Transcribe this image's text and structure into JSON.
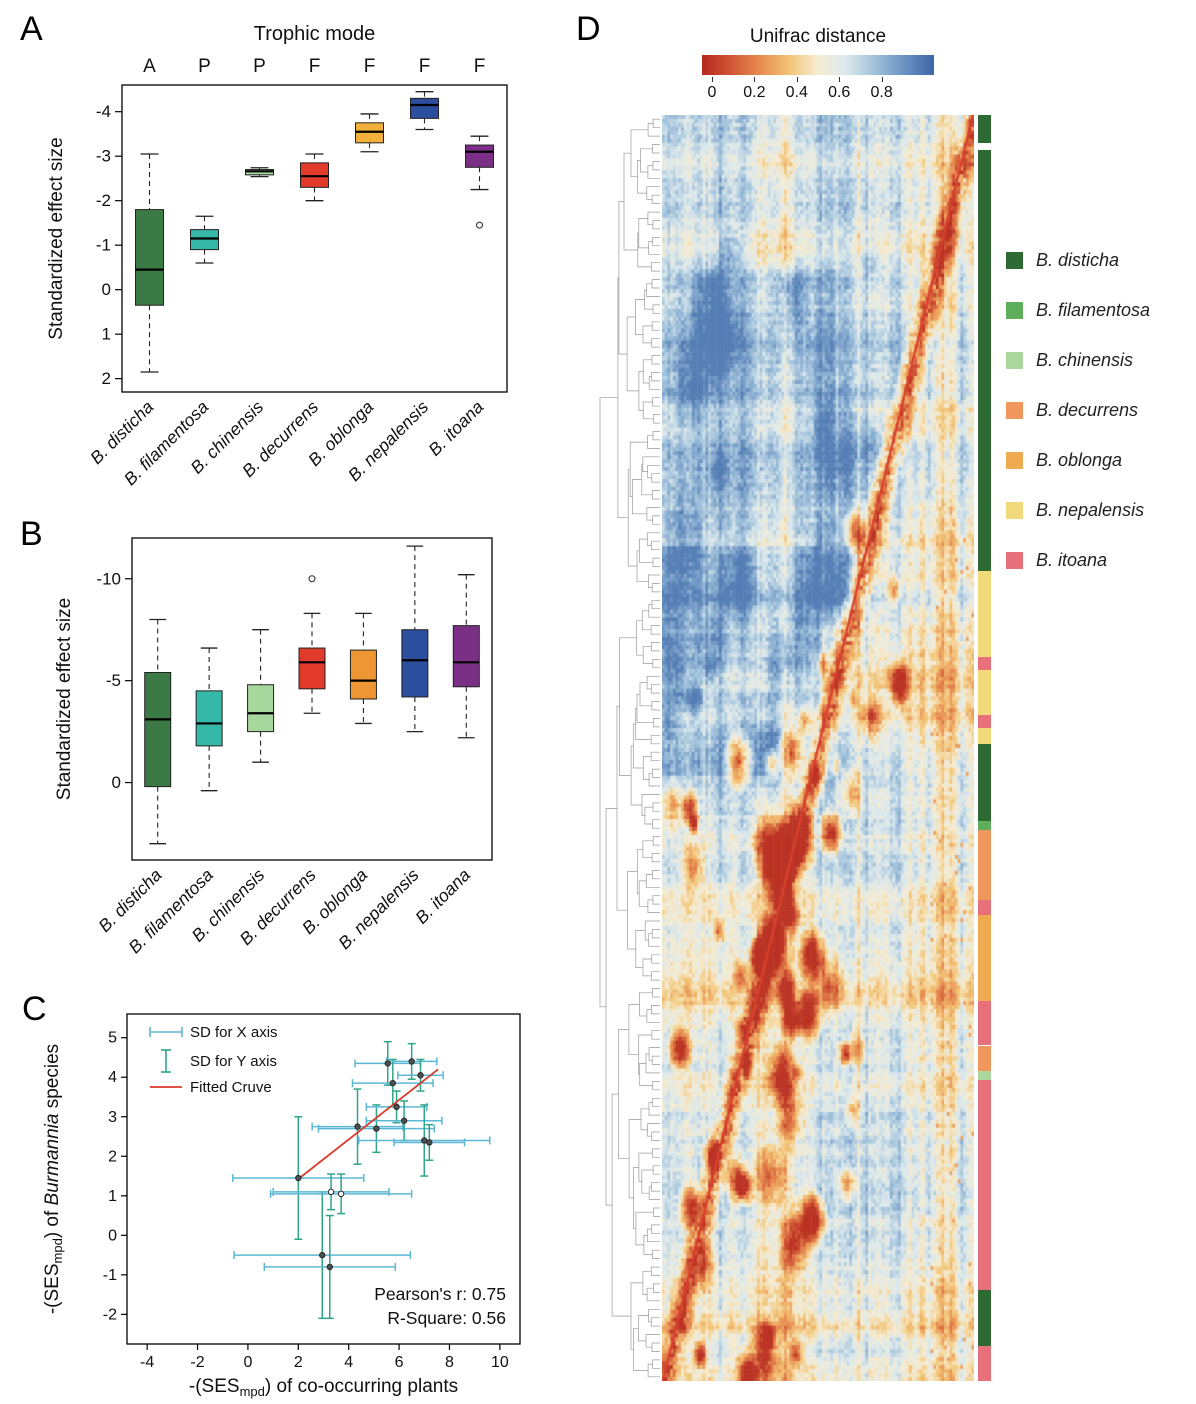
{
  "chart_data": [
    {
      "type": "box",
      "label": "A",
      "title": "Trophic mode",
      "ylabel": "Standardized effect size",
      "trophic_modes": [
        "A",
        "P",
        "P",
        "F",
        "F",
        "F",
        "F"
      ],
      "yticks": [
        -4,
        -3,
        -2,
        -1,
        0,
        1,
        2
      ],
      "ylim": [
        -4.6,
        2.3
      ],
      "categories": [
        "B. disticha",
        "B. filamentosa",
        "B. chinensis",
        "B. decurrens",
        "B. oblonga",
        "B. nepalensis",
        "B. itoana"
      ],
      "boxes": [
        {
          "species": "B. disticha",
          "color": "#3c7a45",
          "whisker_low": -3.05,
          "q3": -1.8,
          "median": -0.45,
          "q1": 0.35,
          "whisker_high": 1.85,
          "outliers": []
        },
        {
          "species": "B. filamentosa",
          "color": "#35b8a8",
          "whisker_low": -1.65,
          "q3": -1.35,
          "median": -1.15,
          "q1": -0.9,
          "whisker_high": -0.6,
          "outliers": []
        },
        {
          "species": "B. chinensis",
          "color": "#a6d79c",
          "whisker_low": -2.74,
          "q3": -2.7,
          "median": -2.66,
          "q1": -2.58,
          "whisker_high": -2.54,
          "outliers": []
        },
        {
          "species": "B. decurrens",
          "color": "#e23b2c",
          "whisker_low": -3.05,
          "q3": -2.85,
          "median": -2.55,
          "q1": -2.3,
          "whisker_high": -2.0,
          "outliers": []
        },
        {
          "species": "B. oblonga",
          "color": "#f2b03c",
          "whisker_low": -3.95,
          "q3": -3.75,
          "median": -3.55,
          "q1": -3.3,
          "whisker_high": -3.1,
          "outliers": []
        },
        {
          "species": "B. nepalensis",
          "color": "#2b4f9e",
          "whisker_low": -4.45,
          "q3": -4.3,
          "median": -4.15,
          "q1": -3.85,
          "whisker_high": -3.6,
          "outliers": []
        },
        {
          "species": "B. itoana",
          "color": "#7c2f86",
          "whisker_low": -3.45,
          "q3": -3.25,
          "median": -3.1,
          "q1": -2.75,
          "whisker_high": -2.25,
          "outliers": [
            -1.45
          ]
        }
      ]
    },
    {
      "type": "box",
      "label": "B",
      "title": "",
      "ylabel": "Standardized effect size",
      "yticks": [
        -10,
        -5,
        0
      ],
      "ylim": [
        -12,
        3.8
      ],
      "categories": [
        "B. disticha",
        "B. filamentosa",
        "B. chinensis",
        "B. decurrens",
        "B. oblonga",
        "B. nepalensis",
        "B. itoana"
      ],
      "boxes": [
        {
          "species": "B. disticha",
          "color": "#3c7a45",
          "whisker_low": -8.0,
          "q3": -5.4,
          "median": -3.1,
          "q1": 0.2,
          "whisker_high": 3.0,
          "outliers": []
        },
        {
          "species": "B. filamentosa",
          "color": "#35b8a8",
          "whisker_low": -6.6,
          "q3": -4.5,
          "median": -2.9,
          "q1": -1.8,
          "whisker_high": 0.4,
          "outliers": []
        },
        {
          "species": "B. chinensis",
          "color": "#a6d79c",
          "whisker_low": -7.5,
          "q3": -4.8,
          "median": -3.4,
          "q1": -2.5,
          "whisker_high": -1.0,
          "outliers": []
        },
        {
          "species": "B. decurrens",
          "color": "#e23b2c",
          "whisker_low": -8.3,
          "q3": -6.6,
          "median": -5.9,
          "q1": -4.6,
          "whisker_high": -3.4,
          "outliers": [
            -10.0
          ]
        },
        {
          "species": "B. oblonga",
          "color": "#ee9633",
          "whisker_low": -8.3,
          "q3": -6.5,
          "median": -5.0,
          "q1": -4.1,
          "whisker_high": -2.9,
          "outliers": []
        },
        {
          "species": "B. nepalensis",
          "color": "#2b4f9e",
          "whisker_low": -11.6,
          "q3": -7.5,
          "median": -6.0,
          "q1": -4.2,
          "whisker_high": -2.5,
          "outliers": []
        },
        {
          "species": "B. itoana",
          "color": "#7c2f86",
          "whisker_low": -10.2,
          "q3": -7.7,
          "median": -5.9,
          "q1": -4.7,
          "whisker_high": -2.2,
          "outliers": []
        }
      ]
    },
    {
      "type": "scatter",
      "label": "C",
      "xlabel": {
        "pre": "-(SES",
        "sub": "mpd",
        "post": ") of co-occurring plants"
      },
      "ylabel": {
        "pre": "-(SES",
        "sub": "mpd",
        "mid": ") of ",
        "italic": "Burmannia",
        "post": " species"
      },
      "xticks": [
        -4,
        -2,
        0,
        2,
        4,
        6,
        8,
        10
      ],
      "yticks": [
        -2,
        -1,
        0,
        1,
        2,
        3,
        4,
        5
      ],
      "xlim": [
        -4.8,
        10.8
      ],
      "ylim": [
        -2.75,
        5.6
      ],
      "legend": [
        "SD for X axis",
        "SD for Y axis",
        "Fitted Cruve"
      ],
      "stats": [
        "Pearson's r: 0.75",
        "R-Square: 0.56"
      ],
      "colors": {
        "xerr": "#5bb8d4",
        "yerr": "#2fa58a",
        "fit": "#d93a2b",
        "point": "#4f4f4f"
      },
      "fit_line": {
        "x1": 1.95,
        "y1": 1.4,
        "x2": 7.55,
        "y2": 4.2
      },
      "points": [
        {
          "x": 2.0,
          "y": 1.45,
          "xerr": 2.6,
          "yerr": 1.55
        },
        {
          "x": 2.95,
          "y": -0.5,
          "xerr": 3.5,
          "yerr": 1.6
        },
        {
          "x": 3.25,
          "y": -0.8,
          "xerr": 2.6,
          "yerr": 1.3
        },
        {
          "x": 3.3,
          "y": 1.1,
          "xerr": 2.3,
          "yerr": 0.45,
          "open": true
        },
        {
          "x": 3.7,
          "y": 1.05,
          "xerr": 2.8,
          "yerr": 0.5,
          "open": true
        },
        {
          "x": 4.35,
          "y": 2.75,
          "xerr": 1.8,
          "yerr": 0.95
        },
        {
          "x": 5.1,
          "y": 2.7,
          "xerr": 2.3,
          "yerr": 0.6
        },
        {
          "x": 5.55,
          "y": 4.35,
          "xerr": 1.3,
          "yerr": 0.55
        },
        {
          "x": 5.75,
          "y": 3.85,
          "xerr": 1.6,
          "yerr": 0.6
        },
        {
          "x": 5.9,
          "y": 3.25,
          "xerr": 1.2,
          "yerr": 0.4
        },
        {
          "x": 6.2,
          "y": 2.9,
          "xerr": 1.5,
          "yerr": 0.5
        },
        {
          "x": 6.5,
          "y": 4.4,
          "xerr": 1.0,
          "yerr": 0.45
        },
        {
          "x": 6.85,
          "y": 4.05,
          "xerr": 0.9,
          "yerr": 0.4
        },
        {
          "x": 7.0,
          "y": 2.4,
          "xerr": 2.6,
          "yerr": 0.9
        },
        {
          "x": 7.2,
          "y": 2.35,
          "xerr": 1.4,
          "yerr": 0.45
        }
      ]
    },
    {
      "type": "heatmap",
      "label": "D",
      "colorbar": {
        "title": "Unifrac distance",
        "ticks": [
          0,
          0.2,
          0.4,
          0.6,
          0.8
        ],
        "stops": [
          {
            "t": 0,
            "color": "#b5281f"
          },
          {
            "t": 0.12,
            "color": "#cf5434"
          },
          {
            "t": 0.25,
            "color": "#e88b50"
          },
          {
            "t": 0.38,
            "color": "#f3c678"
          },
          {
            "t": 0.5,
            "color": "#f6ecd2"
          },
          {
            "t": 0.62,
            "color": "#dce9ed"
          },
          {
            "t": 0.74,
            "color": "#a3c3dc"
          },
          {
            "t": 0.87,
            "color": "#6b93c2"
          },
          {
            "t": 1,
            "color": "#3c66a6"
          }
        ]
      },
      "heatmap": {
        "rows": 320,
        "cols": 115,
        "seed": 11,
        "diagonal_color": "#d9402e"
      },
      "legend": [
        {
          "name": "B. disticha",
          "color": "#2e6b34"
        },
        {
          "name": "B. filamentosa",
          "color": "#5fae5c"
        },
        {
          "name": "B. chinensis",
          "color": "#aad79b"
        },
        {
          "name": "B. decurrens",
          "color": "#f0975e"
        },
        {
          "name": "B. oblonga",
          "color": "#eeab52"
        },
        {
          "name": "B. nepalensis",
          "color": "#f2d97c"
        },
        {
          "name": "B. itoana",
          "color": "#e8707a"
        }
      ],
      "strip_segments": [
        {
          "species": "B. disticha",
          "from": 0.0,
          "to": 0.022
        },
        {
          "species": "B. disticha",
          "from": 0.028,
          "to": 0.36
        },
        {
          "species": "B. nepalensis",
          "from": 0.36,
          "to": 0.428
        },
        {
          "species": "B. itoana",
          "from": 0.428,
          "to": 0.438
        },
        {
          "species": "B. nepalensis",
          "from": 0.438,
          "to": 0.474
        },
        {
          "species": "B. itoana",
          "from": 0.474,
          "to": 0.484
        },
        {
          "species": "B. nepalensis",
          "from": 0.484,
          "to": 0.497
        },
        {
          "species": "B. disticha",
          "from": 0.497,
          "to": 0.558
        },
        {
          "species": "B. filamentosa",
          "from": 0.558,
          "to": 0.565
        },
        {
          "species": "B. decurrens",
          "from": 0.565,
          "to": 0.62
        },
        {
          "species": "B. itoana",
          "from": 0.62,
          "to": 0.632
        },
        {
          "species": "B. oblonga",
          "from": 0.632,
          "to": 0.7
        },
        {
          "species": "B. itoana",
          "from": 0.7,
          "to": 0.735
        },
        {
          "species": "B. decurrens",
          "from": 0.735,
          "to": 0.755
        },
        {
          "species": "B. chinensis",
          "from": 0.755,
          "to": 0.762
        },
        {
          "species": "B. itoana",
          "from": 0.762,
          "to": 0.928
        },
        {
          "species": "B. disticha",
          "from": 0.928,
          "to": 0.972
        },
        {
          "species": "B. itoana",
          "from": 0.972,
          "to": 1.0
        }
      ]
    }
  ]
}
